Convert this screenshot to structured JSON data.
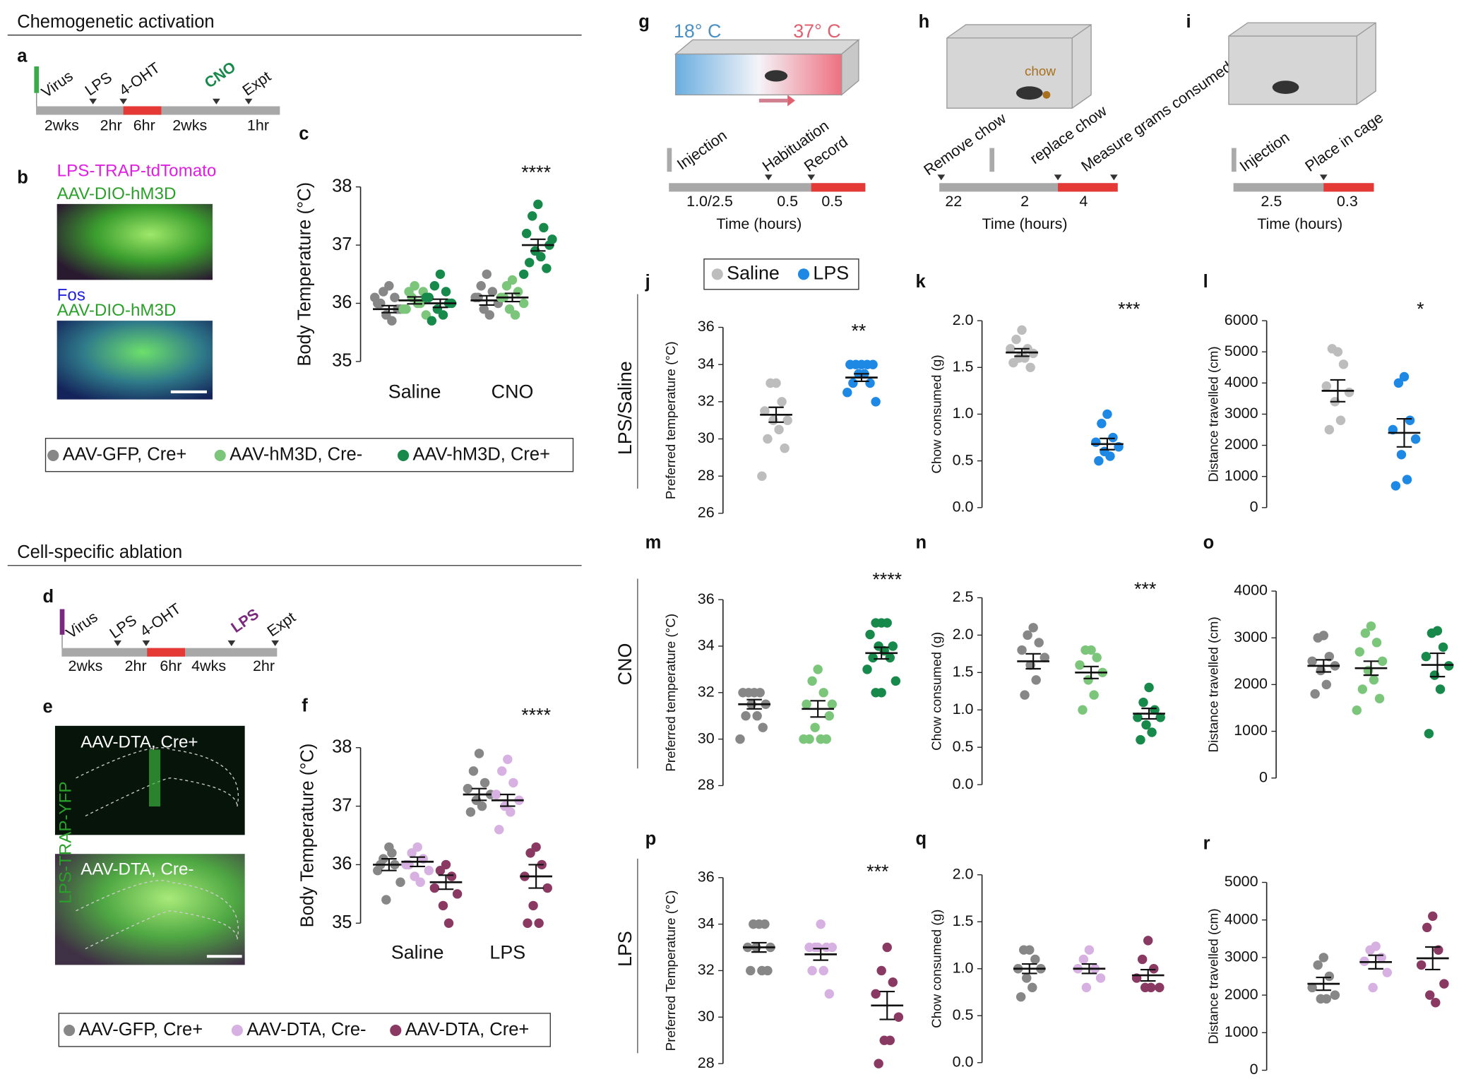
{
  "sections": {
    "activation": "Chemogenetic activation",
    "ablation": "Cell-specific ablation"
  },
  "letters": {
    "a": "a",
    "b": "b",
    "d": "d",
    "e": "e",
    "g": "g",
    "h": "h",
    "i": "i"
  },
  "timeline_a": {
    "events": [
      "Virus",
      "LPS",
      "4-OHT",
      "CNO",
      "Expt"
    ],
    "durations": [
      "2wks",
      "2hr",
      "6hr",
      "2wks",
      "1hr"
    ]
  },
  "timeline_d": {
    "events": [
      "Virus",
      "LPS",
      "4-OHT",
      "LPS",
      "Expt"
    ],
    "durations": [
      "2wks",
      "2hr",
      "6hr",
      "4wks",
      "2hr"
    ]
  },
  "image_b": {
    "top": [
      "LPS-TRAP-tdTomato",
      "AAV-DIO-hM3D"
    ],
    "bottom": [
      "Fos",
      "AAV-DIO-hM3D"
    ]
  },
  "image_e": {
    "top": "AAV-DTA, Cre+",
    "bottom": "AAV-DTA, Cre-",
    "stain": "LPS-TRAP-YFP"
  },
  "assay_g": {
    "temps": [
      "18° C",
      "37° C"
    ],
    "events": [
      "Injection",
      "Habituation",
      "Record"
    ],
    "durations": [
      "1.0/2.5",
      "0.5",
      "0.5"
    ],
    "axis": "Time (hours)"
  },
  "assay_h": {
    "item": "chow",
    "events": [
      "Remove chow",
      "replace chow",
      "Measure grams consumed"
    ],
    "durations": [
      "22",
      "2",
      "4"
    ],
    "axis": "Time (hours)"
  },
  "assay_i": {
    "events": [
      "Injection",
      "Place in cage"
    ],
    "durations": [
      "2.5",
      "0.3"
    ],
    "axis": "Time (hours)"
  },
  "chart_data": [
    {
      "type": "strip",
      "panel": "c",
      "ylabel": "Body Temperature (°C)",
      "categories": [
        "Saline",
        "CNO"
      ],
      "ylim": [
        35,
        38
      ],
      "yticks": [
        35,
        36,
        37,
        38
      ],
      "annotation": "****",
      "series": [
        {
          "name": "AAV-GFP, Cre+",
          "color": "#878787",
          "values": [
            [
              36.3,
              36.2,
              36.1,
              36.0,
              35.9,
              35.8,
              35.7,
              36.0,
              35.9,
              36.1
            ],
            [
              36.5,
              36.3,
              36.2,
              36.1,
              36.0,
              35.9,
              35.8,
              36.1
            ]
          ],
          "mean": [
            35.9,
            36.05
          ],
          "sem": [
            0.06,
            0.08
          ]
        },
        {
          "name": "AAV-hM3D, Cre-",
          "color": "#7cc67c",
          "values": [
            [
              36.3,
              36.2,
              36.0,
              35.9,
              35.8,
              36.1,
              36.0,
              35.9,
              36.2
            ],
            [
              36.4,
              36.3,
              36.2,
              36.1,
              36.0,
              35.9,
              35.8,
              36.1
            ]
          ],
          "mean": [
            36.05,
            36.1
          ],
          "sem": [
            0.06,
            0.07
          ]
        },
        {
          "name": "AAV-hM3D, Cre+",
          "color": "#17894a",
          "values": [
            [
              36.5,
              36.3,
              36.2,
              36.1,
              36.0,
              35.9,
              35.8,
              35.7,
              36.0,
              36.1
            ],
            [
              37.7,
              37.5,
              37.3,
              37.2,
              37.0,
              36.9,
              36.8,
              36.7,
              36.6,
              36.5,
              37.1
            ]
          ],
          "mean": [
            36.0,
            37.0
          ],
          "sem": [
            0.07,
            0.1
          ]
        }
      ]
    },
    {
      "type": "strip",
      "panel": "f",
      "ylabel": "Body Temperature (°C)",
      "categories": [
        "Saline",
        "LPS"
      ],
      "ylim": [
        35,
        38
      ],
      "yticks": [
        35,
        36,
        37,
        38
      ],
      "annotation": "****",
      "series": [
        {
          "name": "AAV-GFP, Cre+",
          "color": "#878787",
          "values": [
            [
              36.3,
              36.1,
              36.0,
              35.9,
              35.7,
              35.4,
              36.2,
              36.0
            ],
            [
              37.9,
              37.6,
              37.4,
              37.3,
              37.2,
              37.1,
              37.0,
              36.9
            ]
          ],
          "mean": [
            36.0,
            37.2
          ],
          "sem": [
            0.1,
            0.1
          ]
        },
        {
          "name": "AAV-DTA, Cre-",
          "color": "#d6b1e2",
          "values": [
            [
              36.3,
              36.2,
              36.1,
              36.0,
              35.9,
              35.8,
              35.7,
              36.0
            ],
            [
              37.8,
              37.6,
              37.4,
              37.2,
              37.1,
              37.0,
              36.9,
              36.6
            ]
          ],
          "mean": [
            36.05,
            37.1
          ],
          "sem": [
            0.08,
            0.1
          ]
        },
        {
          "name": "AAV-DTA, Cre+",
          "color": "#8a3a62",
          "values": [
            [
              36.0,
              35.9,
              35.8,
              35.6,
              35.5,
              35.3,
              35.0
            ],
            [
              36.3,
              36.2,
              36.0,
              35.8,
              35.6,
              35.3,
              35.0,
              35.0
            ]
          ],
          "mean": [
            35.7,
            35.8
          ],
          "sem": [
            0.12,
            0.2
          ]
        }
      ]
    },
    {
      "type": "strip",
      "panel": "j",
      "row_label": "LPS/Saline",
      "ylabel": "Preferred temperature (°C)",
      "categories": [
        null
      ],
      "ylim": [
        26,
        36
      ],
      "yticks": [
        26,
        28,
        30,
        32,
        34,
        36
      ],
      "annotation": "**",
      "series": [
        {
          "name": "Saline",
          "color": "#bdbdbd",
          "values": [
            [
              33,
              33,
              32,
              31.5,
              31,
              31,
              30.5,
              30,
              29.5,
              28
            ]
          ],
          "mean": [
            31.3
          ],
          "sem": [
            0.4
          ]
        },
        {
          "name": "LPS",
          "color": "#1e88e5",
          "values": [
            [
              34,
              34,
              34,
              34,
              34,
              33.5,
              33.5,
              33,
              33,
              32.5,
              32
            ]
          ],
          "mean": [
            33.3
          ],
          "sem": [
            0.2
          ]
        }
      ]
    },
    {
      "type": "strip",
      "panel": "k",
      "ylabel": "Chow consumed (g)",
      "categories": [
        null
      ],
      "ylim": [
        0,
        2
      ],
      "yticks": [
        {
          "value": 0,
          "label": "0.0"
        },
        {
          "value": 0.5,
          "label": "0.5"
        },
        {
          "value": 1,
          "label": "1.0"
        },
        {
          "value": 1.5,
          "label": "1.5"
        },
        {
          "value": 2,
          "label": "2.0"
        }
      ],
      "annotation": "***",
      "series": [
        {
          "color": "#bdbdbd",
          "values": [
            [
              1.9,
              1.8,
              1.7,
              1.7,
              1.65,
              1.6,
              1.6,
              1.55,
              1.5
            ]
          ],
          "mean": [
            1.66
          ],
          "sem": [
            0.04
          ]
        },
        {
          "color": "#1e88e5",
          "values": [
            [
              1.0,
              0.9,
              0.75,
              0.7,
              0.65,
              0.6,
              0.55,
              0.5
            ]
          ],
          "mean": [
            0.68
          ],
          "sem": [
            0.06
          ]
        }
      ]
    },
    {
      "type": "strip",
      "panel": "l",
      "ylabel": "Distance travelled (cm)",
      "categories": [
        null
      ],
      "ylim": [
        0,
        6000
      ],
      "yticks": [
        0,
        1000,
        2000,
        3000,
        4000,
        5000,
        6000
      ],
      "annotation": "*",
      "series": [
        {
          "color": "#bdbdbd",
          "values": [
            [
              5000,
              5100,
              4600,
              3900,
              3700,
              3400,
              2800,
              2500
            ]
          ],
          "mean": [
            3750
          ],
          "sem": [
            350
          ]
        },
        {
          "color": "#1e88e5",
          "values": [
            [
              4200,
              4000,
              2800,
              2500,
              2200,
              1700,
              900,
              700
            ]
          ],
          "mean": [
            2400
          ],
          "sem": [
            450
          ]
        }
      ]
    },
    {
      "type": "strip",
      "panel": "m",
      "row_label": "CNO",
      "ylabel": "Preferred temperature (°C)",
      "categories": [
        null
      ],
      "ylim": [
        28,
        36
      ],
      "yticks": [
        28,
        30,
        32,
        34,
        36
      ],
      "annotation": "****",
      "series": [
        {
          "color": "#878787",
          "values": [
            [
              32,
              32,
              32,
              32,
              31.5,
              31.5,
              31,
              31,
              30.5,
              30
            ]
          ],
          "mean": [
            31.5
          ],
          "sem": [
            0.2
          ]
        },
        {
          "color": "#7cc67c",
          "values": [
            [
              33,
              32.5,
              32,
              31.5,
              31,
              30.5,
              30,
              30,
              30,
              30,
              31.5
            ]
          ],
          "mean": [
            31.3
          ],
          "sem": [
            0.35
          ]
        },
        {
          "color": "#17894a",
          "values": [
            [
              35,
              35,
              35,
              34.5,
              34,
              34,
              33.8,
              33.5,
              33.5,
              33,
              32.5,
              32,
              32
            ]
          ],
          "mean": [
            33.7
          ],
          "sem": [
            0.25
          ]
        }
      ]
    },
    {
      "type": "strip",
      "panel": "n",
      "ylabel": "Chow consumed (g)",
      "categories": [
        null
      ],
      "ylim": [
        0,
        2.5
      ],
      "yticks": [
        {
          "value": 0,
          "label": "0.0"
        },
        {
          "value": 0.5,
          "label": "0.5"
        },
        {
          "value": 1,
          "label": "1.0"
        },
        {
          "value": 1.5,
          "label": "1.5"
        },
        {
          "value": 2,
          "label": "2.0"
        },
        {
          "value": 2.5,
          "label": "2.5"
        }
      ],
      "annotation": "***",
      "series": [
        {
          "color": "#878787",
          "values": [
            [
              2.1,
              2.0,
              1.9,
              1.8,
              1.7,
              1.6,
              1.4,
              1.2
            ]
          ],
          "mean": [
            1.65
          ],
          "sem": [
            0.1
          ]
        },
        {
          "color": "#7cc67c",
          "values": [
            [
              1.8,
              1.8,
              1.7,
              1.6,
              1.5,
              1.4,
              1.2,
              1.0
            ]
          ],
          "mean": [
            1.5
          ],
          "sem": [
            0.08
          ]
        },
        {
          "color": "#17894a",
          "values": [
            [
              1.3,
              1.1,
              1.0,
              0.9,
              0.9,
              0.8,
              0.7,
              0.6
            ]
          ],
          "mean": [
            0.95
          ],
          "sem": [
            0.07
          ]
        }
      ]
    },
    {
      "type": "strip",
      "panel": "o",
      "ylabel": "Distance travelled (cm)",
      "categories": [
        null
      ],
      "ylim": [
        0,
        4000
      ],
      "yticks": [
        0,
        1000,
        2000,
        3000,
        4000
      ],
      "series": [
        {
          "color": "#878787",
          "values": [
            [
              3050,
              3000,
              2600,
              2500,
              2400,
              2300,
              2000,
              1800
            ]
          ],
          "mean": [
            2400
          ],
          "sem": [
            130
          ]
        },
        {
          "color": "#7cc67c",
          "values": [
            [
              3250,
              3100,
              2900,
              2700,
              2500,
              2300,
              2100,
              1900,
              1700,
              1450
            ]
          ],
          "mean": [
            2350
          ],
          "sem": [
            150
          ]
        },
        {
          "color": "#17894a",
          "values": [
            [
              3150,
              3100,
              2800,
              2600,
              2400,
              2200,
              1900,
              950
            ]
          ],
          "mean": [
            2420
          ],
          "sem": [
            250
          ]
        }
      ]
    },
    {
      "type": "strip",
      "panel": "p",
      "row_label": "LPS",
      "ylabel": "Preferred  Temperature (°C)",
      "categories": [
        null
      ],
      "ylim": [
        28,
        36
      ],
      "yticks": [
        28,
        30,
        32,
        34,
        36
      ],
      "annotation": "***",
      "series": [
        {
          "color": "#878787",
          "values": [
            [
              34,
              34,
              34,
              33,
              33,
              33,
              32,
              32,
              32
            ]
          ],
          "mean": [
            33
          ],
          "sem": [
            0.2
          ]
        },
        {
          "color": "#d6b1e2",
          "values": [
            [
              34,
              33,
              33,
              33,
              33,
              33,
              32,
              32,
              31
            ]
          ],
          "mean": [
            32.7
          ],
          "sem": [
            0.25
          ]
        },
        {
          "color": "#8a3a62",
          "values": [
            [
              33,
              32,
              31.5,
              31,
              30,
              29,
              29,
              28
            ]
          ],
          "mean": [
            30.5
          ],
          "sem": [
            0.6
          ]
        }
      ]
    },
    {
      "type": "strip",
      "panel": "q",
      "ylabel": "Chow consumed (g)",
      "categories": [
        null
      ],
      "ylim": [
        0,
        2
      ],
      "yticks": [
        {
          "value": 0,
          "label": "0.0"
        },
        {
          "value": 0.5,
          "label": "0.5"
        },
        {
          "value": 1,
          "label": "1.0"
        },
        {
          "value": 1.5,
          "label": "1.5"
        },
        {
          "value": 2,
          "label": "2.0"
        }
      ],
      "series": [
        {
          "color": "#878787",
          "values": [
            [
              1.2,
              1.2,
              1.1,
              1.0,
              1.0,
              0.9,
              0.8,
              0.7
            ]
          ],
          "mean": [
            1.0
          ],
          "sem": [
            0.05
          ]
        },
        {
          "color": "#d6b1e2",
          "values": [
            [
              1.2,
              1.1,
              1.0,
              1.0,
              0.9,
              0.8
            ]
          ],
          "mean": [
            1.0
          ],
          "sem": [
            0.05
          ]
        },
        {
          "color": "#8a3a62",
          "values": [
            [
              1.3,
              1.1,
              1.0,
              0.9,
              0.8,
              0.8,
              0.8
            ]
          ],
          "mean": [
            0.93
          ],
          "sem": [
            0.06
          ]
        }
      ]
    },
    {
      "type": "strip",
      "panel": "r",
      "ylabel": "Distance travelled (cm)",
      "categories": [
        null
      ],
      "ylim": [
        0,
        5000
      ],
      "yticks": [
        0,
        1000,
        2000,
        3000,
        4000,
        5000
      ],
      "series": [
        {
          "color": "#878787",
          "values": [
            [
              3000,
              2800,
              2500,
              2200,
              2000,
              1900,
              1900
            ]
          ],
          "mean": [
            2300
          ],
          "sem": [
            170
          ]
        },
        {
          "color": "#d6b1e2",
          "values": [
            [
              3300,
              3200,
              3000,
              2900,
              2600,
              2200
            ]
          ],
          "mean": [
            2880
          ],
          "sem": [
            180
          ]
        },
        {
          "color": "#8a3a62",
          "values": [
            [
              4100,
              3800,
              3200,
              2800,
              2300,
              2000,
              1800
            ]
          ],
          "mean": [
            2980
          ],
          "sem": [
            300
          ]
        }
      ]
    }
  ]
}
